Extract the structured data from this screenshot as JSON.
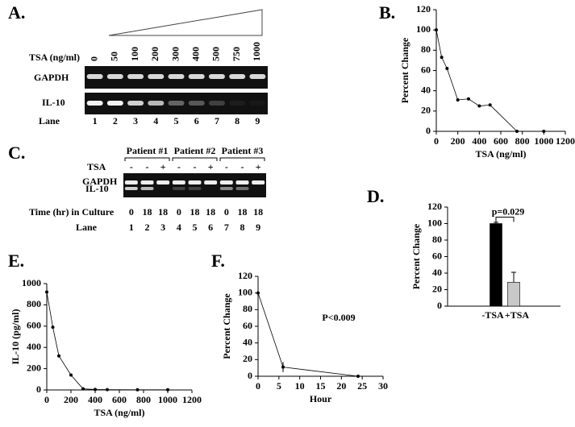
{
  "panels": {
    "A": {
      "label": "A.",
      "tsa_label": "TSA (ng/ml)",
      "concentrations": [
        "0",
        "50",
        "100",
        "200",
        "300",
        "400",
        "500",
        "750",
        "1000"
      ],
      "rows": [
        "GAPDH",
        "IL-10"
      ],
      "lane_label": "Lane",
      "lanes": [
        "1",
        "2",
        "3",
        "4",
        "5",
        "6",
        "7",
        "8",
        "9"
      ]
    },
    "C": {
      "label": "C.",
      "patients": [
        "Patient #1",
        "Patient #2",
        "Patient #3"
      ],
      "tsa_label": "TSA",
      "tsa": [
        "-",
        "-",
        "+",
        "-",
        "-",
        "+",
        "-",
        "-",
        "+"
      ],
      "rows": [
        "GAPDH",
        "IL-10"
      ],
      "time_label": "Time (hr) in Culture",
      "times": [
        "0",
        "18",
        "18",
        "0",
        "18",
        "18",
        "0",
        "18",
        "18"
      ],
      "lane_label": "Lane",
      "lanes": [
        "1",
        "2",
        "3",
        "4",
        "5",
        "6",
        "7",
        "8",
        "9"
      ]
    }
  },
  "chart_data": [
    {
      "type": "line",
      "label": "B.",
      "x_label": "TSA (ng/ml)",
      "y_label": "Percent Change",
      "color": "#000000",
      "x": [
        0,
        50,
        100,
        200,
        300,
        400,
        500,
        750,
        1000
      ],
      "values": [
        100,
        73,
        62,
        31,
        32,
        25,
        26,
        0,
        0
      ],
      "xlim": [
        0,
        1200
      ],
      "xticks": [
        0,
        200,
        400,
        600,
        800,
        1000,
        1200
      ],
      "ylim": [
        0,
        120
      ],
      "yticks": [
        0,
        20,
        40,
        60,
        80,
        100,
        120
      ]
    },
    {
      "type": "bar",
      "label": "D.",
      "y_label": "Percent Change",
      "annotation": "p=0.029",
      "categories": [
        "-TSA",
        "+TSA"
      ],
      "values": [
        100,
        29
      ],
      "errors": [
        1.5,
        12
      ],
      "colors": [
        "#000000",
        "#c8c8c8"
      ],
      "ylim": [
        0,
        120
      ],
      "yticks": [
        0,
        20,
        40,
        60,
        80,
        100,
        120
      ]
    },
    {
      "type": "line",
      "label": "E.",
      "x_label": "TSA (ng/ml)",
      "y_label": "IL-10 (pg/ml)",
      "color": "#000000",
      "x": [
        0,
        50,
        100,
        200,
        300,
        400,
        500,
        750,
        1000
      ],
      "values": [
        920,
        590,
        320,
        140,
        10,
        5,
        3,
        2,
        2
      ],
      "xlim": [
        0,
        1200
      ],
      "xticks": [
        0,
        200,
        400,
        600,
        800,
        1000,
        1200
      ],
      "ylim": [
        0,
        1000
      ],
      "yticks": [
        0,
        200,
        400,
        600,
        800,
        1000
      ]
    },
    {
      "type": "line",
      "label": "F.",
      "x_label": "Hour",
      "y_label": "Percent Change",
      "annotation": "P<0.009",
      "color": "#000000",
      "x": [
        0,
        6,
        24
      ],
      "values": [
        100,
        11,
        0
      ],
      "errors": [
        null,
        6,
        null
      ],
      "xlim": [
        0,
        30
      ],
      "xticks": [
        0,
        5,
        10,
        15,
        20,
        25,
        30
      ],
      "ylim": [
        0,
        120
      ],
      "yticks": [
        0,
        20,
        40,
        60,
        80,
        100,
        120
      ]
    }
  ]
}
